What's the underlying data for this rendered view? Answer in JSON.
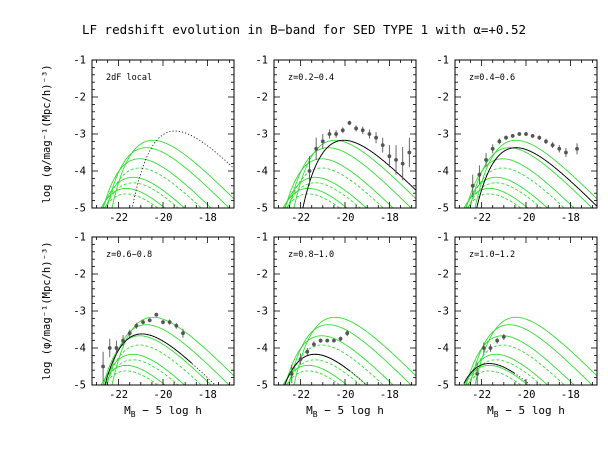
{
  "title": "LF redshift evolution in B−band for SED TYPE 1 with α=+0.52",
  "xlabel_main": "M",
  "xlabel_sub": "B",
  "xlabel_tail": " − 5 log h",
  "ylabel": "log (φ/mag⁻¹(Mpc/h)⁻³)",
  "colors": {
    "model": "#33dd33",
    "fit": "#000000",
    "data": "#555555"
  },
  "chart_data": [
    {
      "type": "line",
      "label": "2dF local",
      "xlim": [
        -23.2,
        -16.8
      ],
      "ylim": [
        -5,
        -1
      ],
      "x_ticks": [
        "-22",
        "-20",
        "-18"
      ],
      "y_ticks": [
        "-5",
        "-4",
        "-3",
        "-2",
        "-1"
      ],
      "models": true,
      "dotted_curve": {
        "Ms": -19.0,
        "logphi": -2.5,
        "alpha": 0.52,
        "x0": -22.3,
        "x1": -16.8
      },
      "solid_curve": null,
      "points": []
    },
    {
      "type": "line",
      "label": "z=0.2−0.4",
      "xlim": [
        -23.2,
        -16.8
      ],
      "ylim": [
        -5,
        -1
      ],
      "x_ticks": [
        "-22",
        "-20",
        "-18"
      ],
      "y_ticks": [
        "-5",
        "-4",
        "-3",
        "-2",
        "-1"
      ],
      "models": true,
      "dotted_curve": {
        "Ms": -19.6,
        "logphi": -2.75,
        "alpha": 0.52,
        "x0": -22.3,
        "x1": -16.8
      },
      "solid_curve": {
        "Ms": -19.6,
        "logphi": -2.75,
        "alpha": 0.52,
        "x0": -22.3,
        "x1": -16.8
      },
      "points": [
        {
          "x": -21.6,
          "y": -4.0,
          "e": 0.4
        },
        {
          "x": -21.3,
          "y": -3.4,
          "e": 0.3
        },
        {
          "x": -21.0,
          "y": -3.2,
          "e": 0.2
        },
        {
          "x": -20.7,
          "y": -3.0,
          "e": 0.12
        },
        {
          "x": -20.4,
          "y": -3.0,
          "e": 0.1
        },
        {
          "x": -20.1,
          "y": -2.9,
          "e": 0.08
        },
        {
          "x": -19.8,
          "y": -2.7,
          "e": 0.06
        },
        {
          "x": -19.5,
          "y": -2.85,
          "e": 0.08
        },
        {
          "x": -19.2,
          "y": -2.9,
          "e": 0.1
        },
        {
          "x": -18.9,
          "y": -3.0,
          "e": 0.12
        },
        {
          "x": -18.6,
          "y": -3.1,
          "e": 0.15
        },
        {
          "x": -18.3,
          "y": -3.3,
          "e": 0.2
        },
        {
          "x": -18.0,
          "y": -3.6,
          "e": 0.3
        },
        {
          "x": -17.7,
          "y": -3.7,
          "e": 0.4
        },
        {
          "x": -17.4,
          "y": -3.8,
          "e": 0.45
        },
        {
          "x": -17.1,
          "y": -3.5,
          "e": 0.4
        }
      ]
    },
    {
      "type": "line",
      "label": "z=0.4−0.6",
      "xlim": [
        -23.2,
        -16.8
      ],
      "ylim": [
        -5,
        -1
      ],
      "x_ticks": [
        "-22",
        "-20",
        "-18"
      ],
      "y_ticks": [
        "-5",
        "-4",
        "-3",
        "-2",
        "-1"
      ],
      "models": true,
      "dotted_curve": {
        "Ms": -20.0,
        "logphi": -2.95,
        "alpha": 0.52,
        "x0": -22.8,
        "x1": -16.8
      },
      "solid_curve": {
        "Ms": -20.0,
        "logphi": -2.95,
        "alpha": 0.52,
        "x0": -22.8,
        "x1": -16.8
      },
      "points": [
        {
          "x": -22.4,
          "y": -4.4,
          "e": 0.3
        },
        {
          "x": -22.1,
          "y": -4.1,
          "e": 0.25
        },
        {
          "x": -21.8,
          "y": -3.7,
          "e": 0.18
        },
        {
          "x": -21.5,
          "y": -3.4,
          "e": 0.12
        },
        {
          "x": -21.2,
          "y": -3.2,
          "e": 0.08
        },
        {
          "x": -20.9,
          "y": -3.1,
          "e": 0.06
        },
        {
          "x": -20.6,
          "y": -3.05,
          "e": 0.05
        },
        {
          "x": -20.3,
          "y": -3.0,
          "e": 0.05
        },
        {
          "x": -20.0,
          "y": -3.0,
          "e": 0.05
        },
        {
          "x": -19.7,
          "y": -3.05,
          "e": 0.05
        },
        {
          "x": -19.4,
          "y": -3.1,
          "e": 0.06
        },
        {
          "x": -19.1,
          "y": -3.2,
          "e": 0.07
        },
        {
          "x": -18.8,
          "y": -3.3,
          "e": 0.08
        },
        {
          "x": -18.5,
          "y": -3.4,
          "e": 0.1
        },
        {
          "x": -18.2,
          "y": -3.5,
          "e": 0.12
        },
        {
          "x": -17.7,
          "y": -3.4,
          "e": 0.15
        }
      ]
    },
    {
      "type": "line",
      "label": "z=0.6−0.8",
      "xlim": [
        -23.2,
        -16.8
      ],
      "ylim": [
        -5,
        -1
      ],
      "x_ticks": [
        "-22",
        "-20",
        "-18"
      ],
      "y_ticks": [
        "-5",
        "-4",
        "-3",
        "-2",
        "-1"
      ],
      "models": true,
      "dotted_curve": {
        "Ms": -20.5,
        "logphi": -3.2,
        "alpha": 0.52,
        "x0": -22.8,
        "x1": -17.5
      },
      "solid_curve": {
        "Ms": -20.5,
        "logphi": -3.2,
        "alpha": 0.52,
        "x0": -22.8,
        "x1": -18.7
      },
      "points": [
        {
          "x": -22.7,
          "y": -4.5,
          "e": 0.4
        },
        {
          "x": -22.4,
          "y": -4.0,
          "e": 0.25
        },
        {
          "x": -22.1,
          "y": -4.0,
          "e": 0.2
        },
        {
          "x": -21.8,
          "y": -3.8,
          "e": 0.15
        },
        {
          "x": -21.5,
          "y": -3.6,
          "e": 0.1
        },
        {
          "x": -21.2,
          "y": -3.4,
          "e": 0.08
        },
        {
          "x": -20.9,
          "y": -3.3,
          "e": 0.06
        },
        {
          "x": -20.6,
          "y": -3.25,
          "e": 0.05
        },
        {
          "x": -20.3,
          "y": -3.1,
          "e": 0.05
        },
        {
          "x": -20.0,
          "y": -3.3,
          "e": 0.06
        },
        {
          "x": -19.7,
          "y": -3.3,
          "e": 0.07
        },
        {
          "x": -19.4,
          "y": -3.4,
          "e": 0.08
        },
        {
          "x": -19.1,
          "y": -3.6,
          "e": 0.12
        }
      ]
    },
    {
      "type": "line",
      "label": "z=0.8−1.0",
      "xlim": [
        -23.2,
        -16.8
      ],
      "ylim": [
        -5,
        -1
      ],
      "x_ticks": [
        "-22",
        "-20",
        "-18"
      ],
      "y_ticks": [
        "-5",
        "-4",
        "-3",
        "-2",
        "-1"
      ],
      "models": true,
      "dotted_curve": {
        "Ms": -20.9,
        "logphi": -3.75,
        "alpha": 0.52,
        "x0": -22.8,
        "x1": -17.2
      },
      "solid_curve": {
        "Ms": -20.9,
        "logphi": -3.75,
        "alpha": 0.52,
        "x0": -22.8,
        "x1": -19.8
      },
      "points": [
        {
          "x": -22.4,
          "y": -4.7,
          "e": 0.25
        },
        {
          "x": -22.0,
          "y": -4.3,
          "e": 0.15
        },
        {
          "x": -21.7,
          "y": -4.1,
          "e": 0.1
        },
        {
          "x": -21.4,
          "y": -3.9,
          "e": 0.08
        },
        {
          "x": -21.1,
          "y": -3.8,
          "e": 0.06
        },
        {
          "x": -20.8,
          "y": -3.8,
          "e": 0.05
        },
        {
          "x": -20.5,
          "y": -3.8,
          "e": 0.05
        },
        {
          "x": -20.2,
          "y": -3.75,
          "e": 0.06
        },
        {
          "x": -19.9,
          "y": -3.6,
          "e": 0.08
        }
      ]
    },
    {
      "type": "line",
      "label": "z=1.0−1.2",
      "xlim": [
        -23.2,
        -16.8
      ],
      "ylim": [
        -5,
        -1
      ],
      "x_ticks": [
        "-22",
        "-20",
        "-18"
      ],
      "y_ticks": [
        "-5",
        "-4",
        "-3",
        "-2",
        "-1"
      ],
      "models": true,
      "dotted_curve": {
        "Ms": -21.2,
        "logphi": -4.0,
        "alpha": 0.52,
        "x0": -22.8,
        "x1": -18.8
      },
      "solid_curve": {
        "Ms": -21.2,
        "logphi": -4.0,
        "alpha": 0.52,
        "x0": -22.8,
        "x1": -20.5
      },
      "points": [
        {
          "x": -22.2,
          "y": -4.7,
          "e": 0.3
        },
        {
          "x": -21.9,
          "y": -4.0,
          "e": 0.15
        },
        {
          "x": -21.6,
          "y": -4.0,
          "e": 0.1
        },
        {
          "x": -21.3,
          "y": -3.8,
          "e": 0.08
        },
        {
          "x": -21.0,
          "y": -3.7,
          "e": 0.08
        }
      ]
    }
  ],
  "model_curves": [
    {
      "Ms": -20.0,
      "logphi": -2.75,
      "alpha": 0.52,
      "dotted": false
    },
    {
      "Ms": -20.3,
      "logphi": -2.95,
      "alpha": 0.52,
      "dotted": false
    },
    {
      "Ms": -20.6,
      "logphi": -3.25,
      "alpha": 0.52,
      "dotted": false
    },
    {
      "Ms": -20.9,
      "logphi": -3.75,
      "alpha": 0.52,
      "dotted": false
    },
    {
      "Ms": -21.2,
      "logphi": -4.05,
      "alpha": 0.52,
      "dotted": false
    },
    {
      "Ms": -20.6,
      "logphi": -3.5,
      "alpha": 0.52,
      "dotted": true
    },
    {
      "Ms": -20.9,
      "logphi": -3.9,
      "alpha": 0.52,
      "dotted": true
    },
    {
      "Ms": -21.2,
      "logphi": -4.2,
      "alpha": 0.52,
      "dotted": true
    }
  ]
}
